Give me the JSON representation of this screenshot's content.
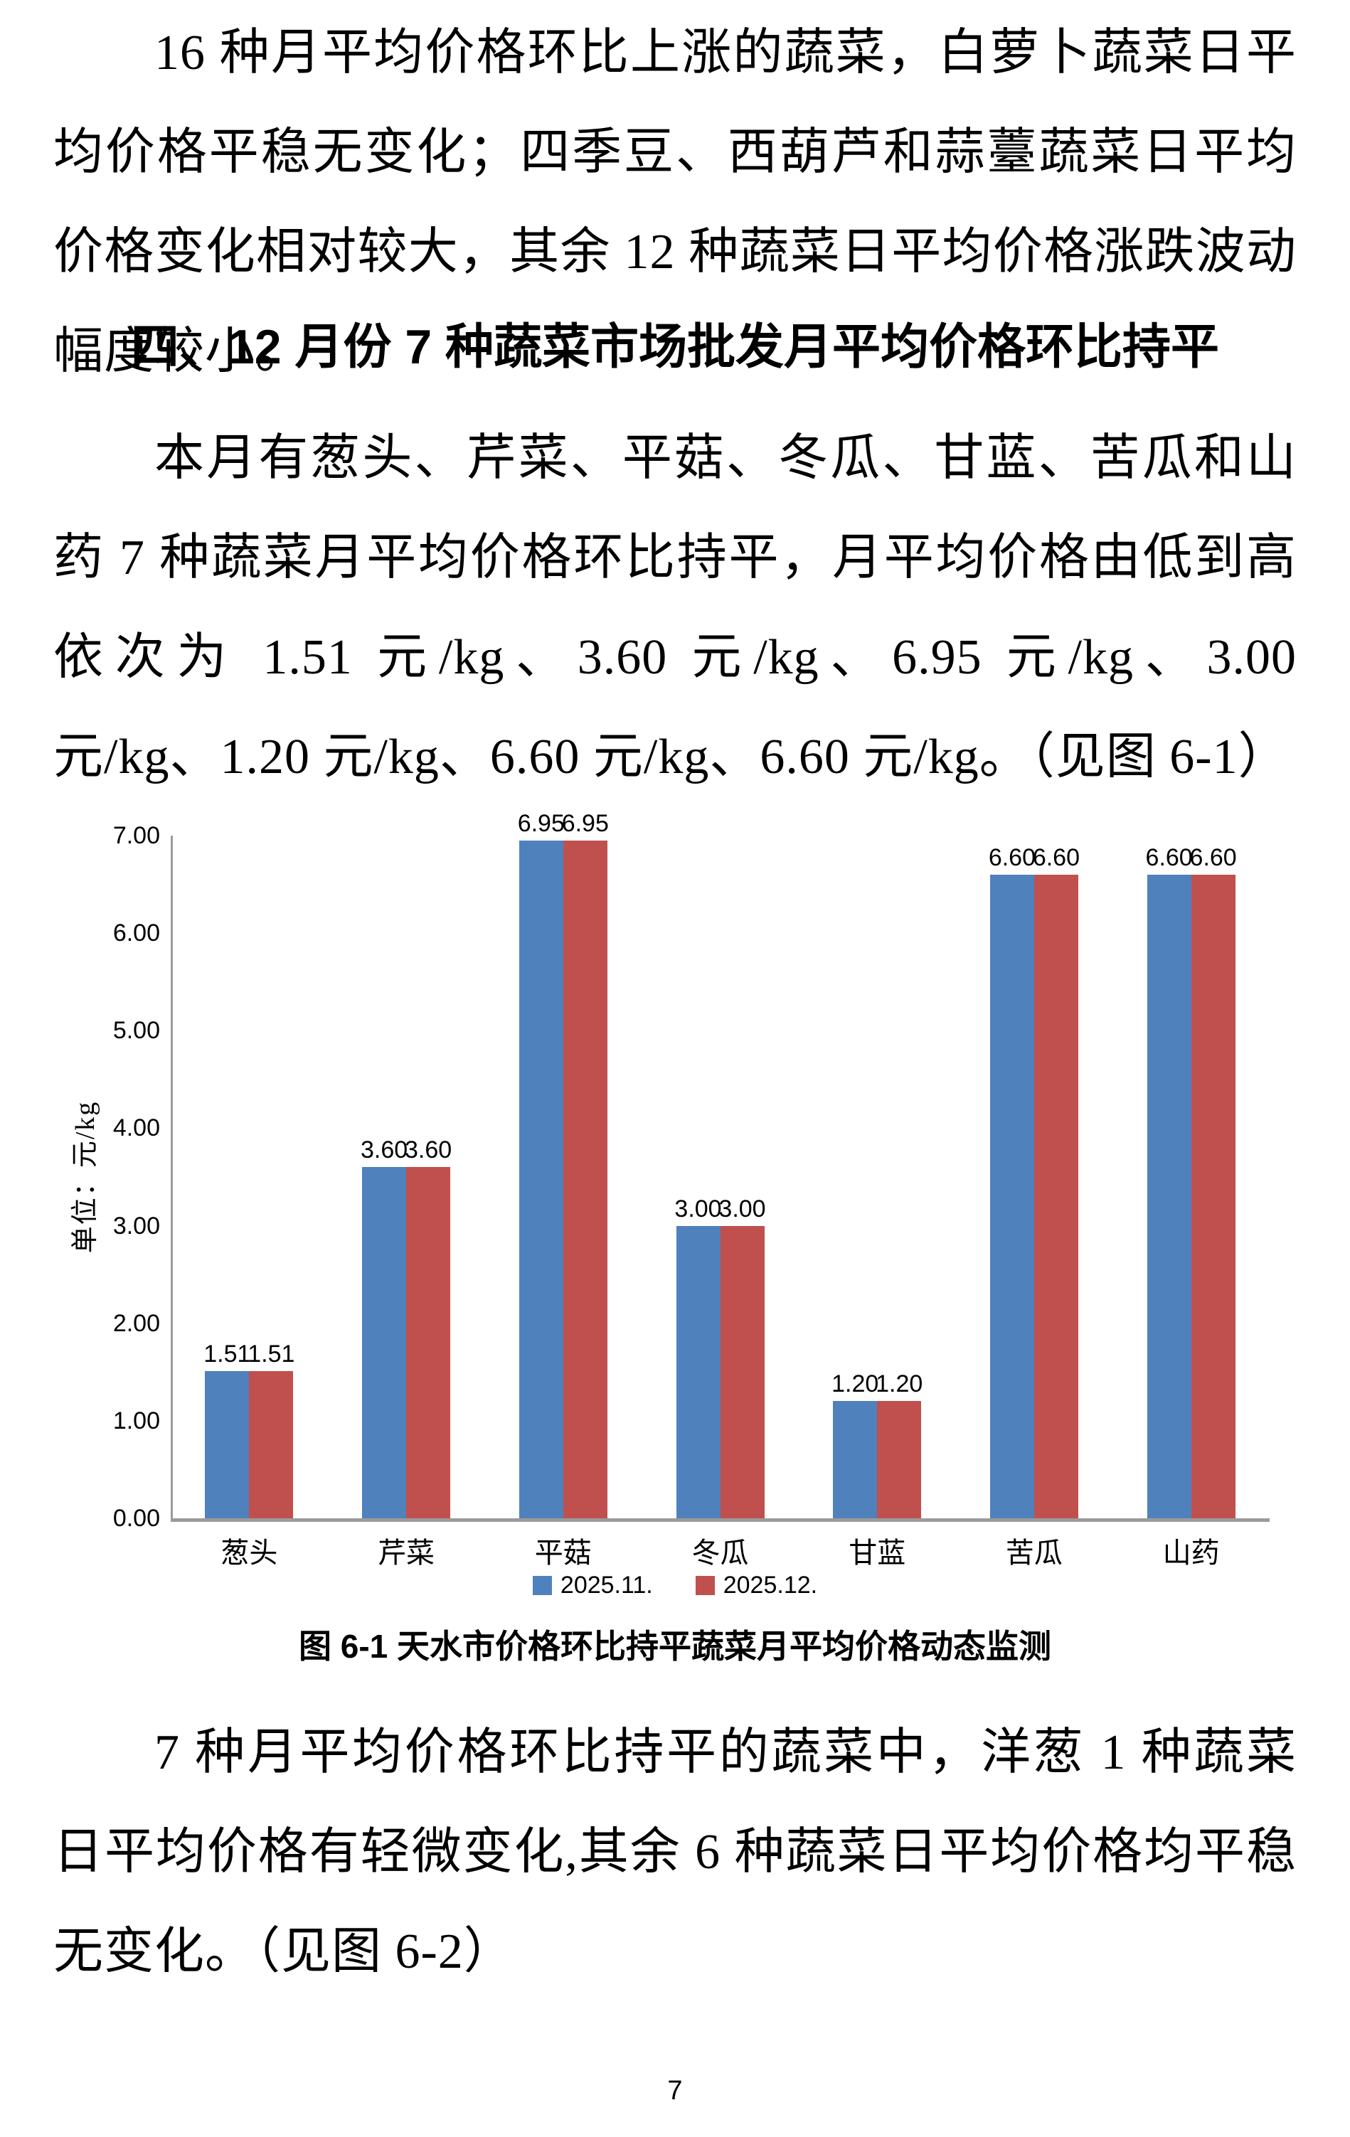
{
  "document": {
    "paragraph1": "16 种月平均价格环比上涨的蔬菜，白萝卜蔬菜日平均价格平稳无变化；四季豆、西葫芦和蒜薹蔬菜日平均价格变化相对较大，其余 12 种蔬菜日平均价格涨跌波动幅度较小。",
    "heading": "四、12 月份 7 种蔬菜市场批发月平均价格环比持平",
    "paragraph2": "本月有葱头、芹菜、平菇、冬瓜、甘蓝、苦瓜和山药 7 种蔬菜月平均价格环比持平，月平均价格由低到高依次为 1.51 元/kg、3.60 元/kg、6.95 元/kg、3.00 元/kg、1.20 元/kg、6.60 元/kg、6.60 元/kg。（见图 6-1）",
    "figure_caption": "图 6-1 天水市价格环比持平蔬菜月平均价格动态监测",
    "paragraph3": "7 种月平均价格环比持平的蔬菜中，洋葱 1 种蔬菜日平均价格有轻微变化,其余 6 种蔬菜日平均价格均平稳无变化。（见图 6-2）",
    "page_number": "7"
  },
  "chart_data": {
    "type": "bar",
    "title": "",
    "categories": [
      "葱头",
      "芹菜",
      "平菇",
      "冬瓜",
      "甘蓝",
      "苦瓜",
      "山药"
    ],
    "series": [
      {
        "name": "2025.11.",
        "color": "#4F81BD",
        "values": [
          1.51,
          3.6,
          6.95,
          3.0,
          1.2,
          6.6,
          6.6
        ]
      },
      {
        "name": "2025.12.",
        "color": "#C0504D",
        "values": [
          1.51,
          3.6,
          6.95,
          3.0,
          1.2,
          6.6,
          6.6
        ]
      }
    ],
    "xlabel": "",
    "ylabel": "单位：元/kg",
    "ylim": [
      0,
      7
    ],
    "ytick_step": 1,
    "ytick_decimals": 2,
    "grid": false,
    "legend_position": "bottom",
    "axis_color": "#9b9b9b",
    "data_labels": true
  }
}
